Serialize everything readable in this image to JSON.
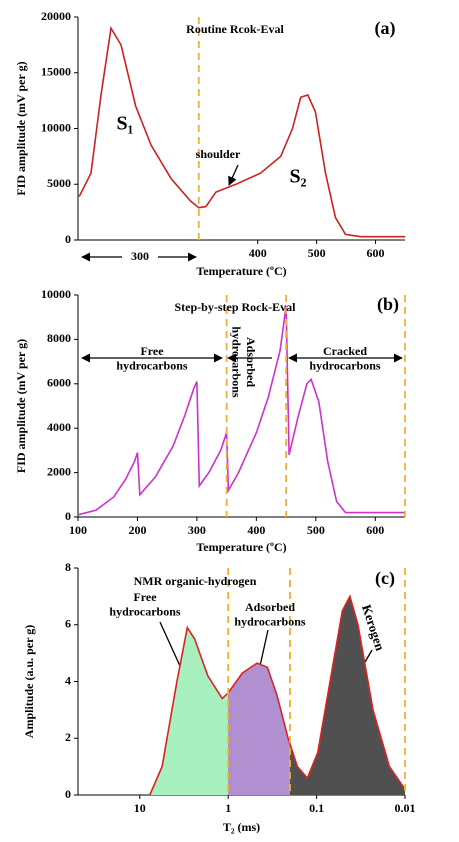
{
  "chart_data": [
    {
      "type": "line",
      "title": "Routine Rcok-Eval",
      "panel_label": "(a)",
      "ylabel": "FID amplitude (mV per g)",
      "xlabel": "Temperature (ºC)",
      "xlim": [
        95,
        650
      ],
      "xticks": [
        400,
        500,
        600
      ],
      "ylim": [
        0,
        20000
      ],
      "yticks": [
        0,
        5000,
        10000,
        15000,
        20000
      ],
      "vlines": [
        300
      ],
      "vline_color": "#f0b030",
      "annotations": [
        "S₁",
        "shoulder",
        "S₂",
        "300"
      ],
      "series": [
        {
          "color": "#cc2222",
          "x": [
            97,
            117,
            134,
            151,
            168,
            193,
            219,
            253,
            286,
            300,
            312,
            329,
            363,
            405,
            439,
            459,
            473,
            485,
            498,
            515,
            532,
            549,
            575,
            650
          ],
          "values": [
            3900,
            6000,
            13000,
            19000,
            17500,
            12000,
            8500,
            5500,
            3500,
            2900,
            3000,
            4300,
            5000,
            6000,
            7500,
            10000,
            12800,
            13000,
            11500,
            6000,
            2000,
            500,
            300,
            300
          ]
        }
      ]
    },
    {
      "type": "line",
      "title": "Step-by-step Rock-Eval",
      "panel_label": "(b)",
      "ylabel": "FID amplitude (mV per g)",
      "xlabel": "Temperature (ºC)",
      "xlim": [
        100,
        650
      ],
      "xticks": [
        100,
        200,
        300,
        400,
        500,
        600
      ],
      "ylim": [
        0,
        10000
      ],
      "yticks": [
        0,
        2000,
        4000,
        6000,
        8000,
        10000
      ],
      "vlines": [
        350,
        450,
        650
      ],
      "vline_color": "#f0b030",
      "annotations": [
        [
          "Free",
          "hydrocarbons"
        ],
        [
          "Adsorbed",
          "hydrocarbons"
        ],
        [
          "Cracked",
          "hydrocarbons"
        ]
      ],
      "series": [
        {
          "color": "#cc33cc",
          "x": [
            100,
            130,
            160,
            180,
            195,
            200,
            204,
            230,
            260,
            280,
            295,
            300,
            304,
            320,
            340,
            350,
            353,
            370,
            400,
            420,
            440,
            450,
            455,
            470,
            485,
            492,
            505,
            520,
            535,
            550,
            580,
            650
          ],
          "values": [
            100,
            300,
            900,
            1700,
            2500,
            2900,
            1000,
            1800,
            3200,
            4600,
            5800,
            6100,
            1400,
            2000,
            3000,
            3800,
            1200,
            2000,
            3800,
            5400,
            7500,
            9500,
            2800,
            4500,
            6000,
            6200,
            5200,
            2500,
            700,
            200,
            200,
            200
          ]
        }
      ]
    },
    {
      "type": "area",
      "title": "NMR organic-hydrogen",
      "panel_label": "(c)",
      "ylabel": "Amplitude (a.u. per g)",
      "xlabel": "T₂ (ms)",
      "xscale": "log",
      "xlim": [
        50,
        0.01
      ],
      "xticks": [
        10,
        1,
        0.1,
        0.01
      ],
      "ylim": [
        0,
        8
      ],
      "yticks": [
        0,
        2,
        4,
        6,
        8
      ],
      "vlines": [
        1,
        0.2,
        0.01
      ],
      "vline_color": "#f0b030",
      "fill_colors": [
        "#a8f0c0",
        "#b090d0",
        "#505050"
      ],
      "annotations": [
        [
          "Free",
          "hydrocarbons"
        ],
        [
          "Adsorbed",
          "hydrocarbons"
        ],
        "Kerogen"
      ],
      "series": [
        {
          "color": "#dd2222",
          "x": [
            7.7,
            5.6,
            3.8,
            2.9,
            2.4,
            1.7,
            1.17,
            1,
            0.69,
            0.47,
            0.36,
            0.28,
            0.21,
            0.165,
            0.127,
            0.097,
            0.066,
            0.051,
            0.042,
            0.034,
            0.023,
            0.015,
            0.01
          ],
          "values": [
            0,
            1,
            4,
            5.9,
            5.5,
            4.2,
            3.4,
            3.6,
            4.3,
            4.65,
            4.5,
            3.5,
            2.0,
            1.0,
            0.6,
            1.5,
            4.5,
            6.5,
            7.0,
            6.0,
            3.0,
            1.0,
            0.2
          ]
        }
      ]
    }
  ]
}
